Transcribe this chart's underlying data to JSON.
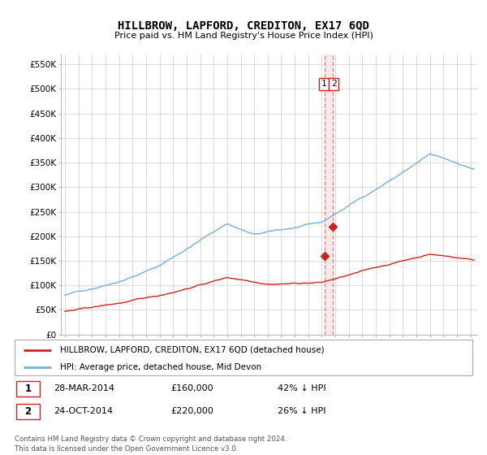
{
  "title": "HILLBROW, LAPFORD, CREDITON, EX17 6QD",
  "subtitle": "Price paid vs. HM Land Registry's House Price Index (HPI)",
  "ylabel_ticks": [
    "£0",
    "£50K",
    "£100K",
    "£150K",
    "£200K",
    "£250K",
    "£300K",
    "£350K",
    "£400K",
    "£450K",
    "£500K",
    "£550K"
  ],
  "ytick_values": [
    0,
    50000,
    100000,
    150000,
    200000,
    250000,
    300000,
    350000,
    400000,
    450000,
    500000,
    550000
  ],
  "ylim": [
    0,
    570000
  ],
  "xlim_start": 1994.7,
  "xlim_end": 2025.5,
  "hpi_color": "#7aaddb",
  "price_color": "#cc2222",
  "dashed_color": "#ee8888",
  "vline_fill": "#f5dddd",
  "transaction1_date": 2014.24,
  "transaction1_price": 160000,
  "transaction2_date": 2014.82,
  "transaction2_price": 220000,
  "legend_label1": "HILLBROW, LAPFORD, CREDITON, EX17 6QD (detached house)",
  "legend_label2": "HPI: Average price, detached house, Mid Devon",
  "table_row1": [
    "1",
    "28-MAR-2014",
    "£160,000",
    "42% ↓ HPI"
  ],
  "table_row2": [
    "2",
    "24-OCT-2014",
    "£220,000",
    "26% ↓ HPI"
  ],
  "footer": "Contains HM Land Registry data © Crown copyright and database right 2024.\nThis data is licensed under the Open Government Licence v3.0.",
  "background_color": "#ffffff",
  "grid_color": "#cccccc"
}
